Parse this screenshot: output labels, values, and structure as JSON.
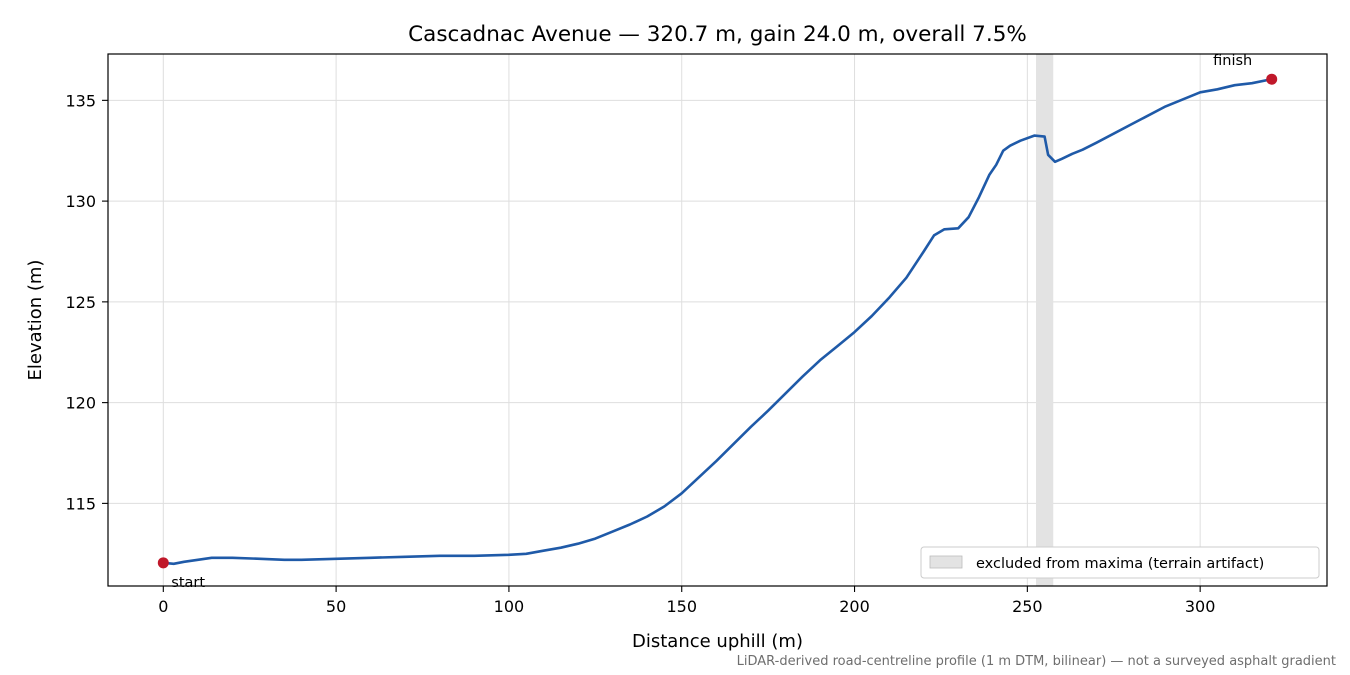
{
  "chart_data": {
    "type": "line",
    "title": "Cascadnac Avenue — 320.7 m, gain 24.0 m, overall 7.5%",
    "xlabel": "Distance uphill (m)",
    "ylabel": "Elevation (m)",
    "xlim": [
      -16,
      336.7
    ],
    "ylim": [
      110.9,
      137.3
    ],
    "x_ticks": [
      0,
      50,
      100,
      150,
      200,
      250,
      300
    ],
    "y_ticks": [
      115,
      120,
      125,
      130,
      135
    ],
    "grid": true,
    "series": [
      {
        "name": "",
        "color": "#1f5aa8",
        "x": [
          0,
          3,
          6,
          10,
          14,
          20,
          28,
          35,
          40,
          50,
          60,
          70,
          80,
          90,
          100,
          105,
          110,
          115,
          120,
          125,
          130,
          135,
          140,
          145,
          150,
          155,
          160,
          165,
          170,
          175,
          180,
          185,
          190,
          195,
          200,
          205,
          210,
          215,
          220,
          223,
          226,
          230,
          233,
          236,
          239,
          241,
          243,
          245,
          248,
          252,
          255,
          256,
          258,
          260,
          263,
          266,
          270,
          280,
          290,
          300,
          305,
          310,
          315,
          320.7
        ],
        "y": [
          112.05,
          112.0,
          112.1,
          112.2,
          112.3,
          112.3,
          112.25,
          112.2,
          112.2,
          112.25,
          112.3,
          112.35,
          112.4,
          112.4,
          112.45,
          112.5,
          112.65,
          112.8,
          113.0,
          113.25,
          113.6,
          113.95,
          114.35,
          114.85,
          115.5,
          116.3,
          117.1,
          117.95,
          118.8,
          119.6,
          120.45,
          121.3,
          122.1,
          122.8,
          123.5,
          124.3,
          125.2,
          126.2,
          127.5,
          128.3,
          128.6,
          128.65,
          129.2,
          130.2,
          131.3,
          131.8,
          132.5,
          132.75,
          133.0,
          133.25,
          133.2,
          132.3,
          131.95,
          132.1,
          132.35,
          132.55,
          132.9,
          133.8,
          134.7,
          135.4,
          135.55,
          135.75,
          135.85,
          136.05
        ]
      }
    ],
    "points": [
      {
        "label": "start",
        "x": 0,
        "y": 112.05,
        "color": "#c0182a"
      },
      {
        "label": "finish",
        "x": 320.7,
        "y": 136.05,
        "color": "#c0182a"
      }
    ],
    "excluded_band": {
      "x0": 252.5,
      "x1": 257.5,
      "color": "#e3e3e3",
      "label": "excluded from maxima (terrain artifact)"
    },
    "legend": {
      "placement": "bottom-right"
    },
    "footnote": "LiDAR-derived road-centreline profile (1 m DTM, bilinear) — not a surveyed asphalt gradient"
  }
}
